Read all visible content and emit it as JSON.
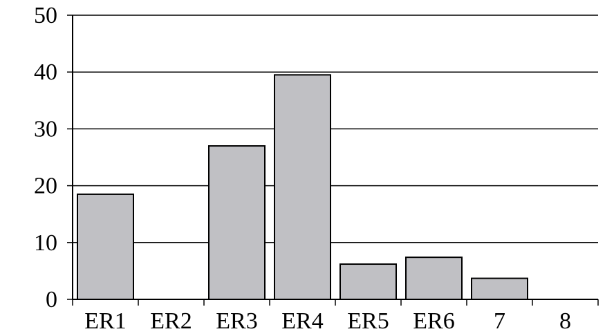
{
  "chart_data": {
    "type": "bar",
    "categories": [
      "ER1",
      "ER2",
      "ER3",
      "ER4",
      "ER5",
      "ER6",
      "7",
      "8"
    ],
    "values": [
      18.5,
      0,
      27,
      39.5,
      6.2,
      7.4,
      3.7,
      0
    ],
    "title": "",
    "xlabel": "",
    "ylabel": "",
    "ylim": [
      0,
      50
    ],
    "yticks": [
      "0",
      "10",
      "20",
      "30",
      "40",
      "50"
    ],
    "grid": "horizontal",
    "legend": "none",
    "colors": {
      "bar_fill": "#c0c0c4",
      "bar_stroke": "#000000",
      "grid": "#000000",
      "axis": "#000000"
    }
  }
}
